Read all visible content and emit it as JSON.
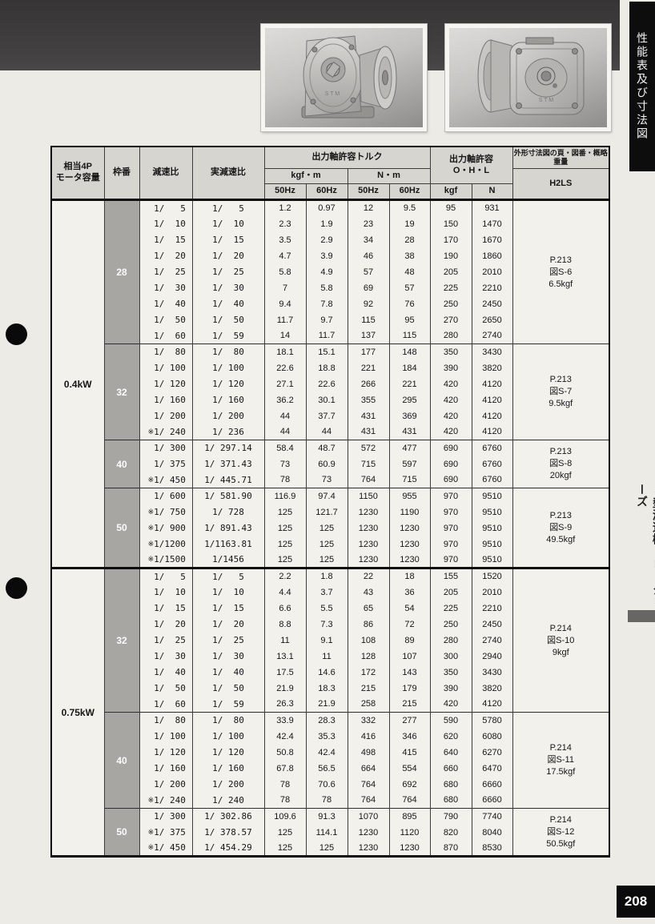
{
  "page": {
    "side_tab_top": "性能表及び寸法図",
    "side_series": "S型減速機・H2シリーズ",
    "page_number": "208"
  },
  "table": {
    "headers": {
      "motor": "相当4P\nモータ容量",
      "frame": "枠番",
      "ratio": "減速比",
      "actual_ratio": "実減速比",
      "torque": "出力軸許容トルク",
      "kgfm": "kgf・m",
      "nm": "N・m",
      "hz50": "50Hz",
      "hz60": "60Hz",
      "ohl": "出力軸許容\nO・H・L",
      "kgf": "kgf",
      "n": "N",
      "outline": "外形寸法図の頁・図番・概略重量",
      "h2ls": "H2LS"
    },
    "sections": [
      {
        "capacity": "0.4kW",
        "groups": [
          {
            "frame": "28",
            "note": [
              "P.213",
              "図S-6",
              "6.5kgf"
            ],
            "rows": [
              [
                "",
                "1/   5",
                "1/   5",
                "1.2",
                "0.97",
                "12",
                "9.5",
                "95",
                "931"
              ],
              [
                "",
                "1/  10",
                "1/  10",
                "2.3",
                "1.9",
                "23",
                "19",
                "150",
                "1470"
              ],
              [
                "",
                "1/  15",
                "1/  15",
                "3.5",
                "2.9",
                "34",
                "28",
                "170",
                "1670"
              ],
              [
                "",
                "1/  20",
                "1/  20",
                "4.7",
                "3.9",
                "46",
                "38",
                "190",
                "1860"
              ],
              [
                "",
                "1/  25",
                "1/  25",
                "5.8",
                "4.9",
                "57",
                "48",
                "205",
                "2010"
              ],
              [
                "",
                "1/  30",
                "1/  30",
                "7",
                "5.8",
                "69",
                "57",
                "225",
                "2210"
              ],
              [
                "",
                "1/  40",
                "1/  40",
                "9.4",
                "7.8",
                "92",
                "76",
                "250",
                "2450"
              ],
              [
                "",
                "1/  50",
                "1/  50",
                "11.7",
                "9.7",
                "115",
                "95",
                "270",
                "2650"
              ],
              [
                "",
                "1/  60",
                "1/  59",
                "14",
                "11.7",
                "137",
                "115",
                "280",
                "2740"
              ]
            ]
          },
          {
            "frame": "32",
            "note": [
              "P.213",
              "図S-7",
              "9.5kgf"
            ],
            "rows": [
              [
                "",
                "1/  80",
                "1/  80",
                "18.1",
                "15.1",
                "177",
                "148",
                "350",
                "3430"
              ],
              [
                "",
                "1/ 100",
                "1/ 100",
                "22.6",
                "18.8",
                "221",
                "184",
                "390",
                "3820"
              ],
              [
                "",
                "1/ 120",
                "1/ 120",
                "27.1",
                "22.6",
                "266",
                "221",
                "420",
                "4120"
              ],
              [
                "",
                "1/ 160",
                "1/ 160",
                "36.2",
                "30.1",
                "355",
                "295",
                "420",
                "4120"
              ],
              [
                "",
                "1/ 200",
                "1/ 200",
                "44",
                "37.7",
                "431",
                "369",
                "420",
                "4120"
              ],
              [
                "※",
                "1/ 240",
                "1/ 236",
                "44",
                "44",
                "431",
                "431",
                "420",
                "4120"
              ]
            ]
          },
          {
            "frame": "40",
            "note": [
              "P.213",
              "図S-8",
              "20kgf"
            ],
            "rows": [
              [
                "",
                "1/ 300",
                "1/ 297.14",
                "58.4",
                "48.7",
                "572",
                "477",
                "690",
                "6760"
              ],
              [
                "",
                "1/ 375",
                "1/ 371.43",
                "73",
                "60.9",
                "715",
                "597",
                "690",
                "6760"
              ],
              [
                "※",
                "1/ 450",
                "1/ 445.71",
                "78",
                "73",
                "764",
                "715",
                "690",
                "6760"
              ]
            ]
          },
          {
            "frame": "50",
            "note": [
              "P.213",
              "図S-9",
              "49.5kgf"
            ],
            "rows": [
              [
                "",
                "1/ 600",
                "1/ 581.90",
                "116.9",
                "97.4",
                "1150",
                "955",
                "970",
                "9510"
              ],
              [
                "※",
                "1/ 750",
                "1/ 728",
                "125",
                "121.7",
                "1230",
                "1190",
                "970",
                "9510"
              ],
              [
                "※",
                "1/ 900",
                "1/ 891.43",
                "125",
                "125",
                "1230",
                "1230",
                "970",
                "9510"
              ],
              [
                "※",
                "1/1200",
                "1/1163.81",
                "125",
                "125",
                "1230",
                "1230",
                "970",
                "9510"
              ],
              [
                "※",
                "1/1500",
                "1/1456",
                "125",
                "125",
                "1230",
                "1230",
                "970",
                "9510"
              ]
            ]
          }
        ]
      },
      {
        "capacity": "0.75kW",
        "groups": [
          {
            "frame": "32",
            "note": [
              "P.214",
              "図S-10",
              "9kgf"
            ],
            "rows": [
              [
                "",
                "1/   5",
                "1/   5",
                "2.2",
                "1.8",
                "22",
                "18",
                "155",
                "1520"
              ],
              [
                "",
                "1/  10",
                "1/  10",
                "4.4",
                "3.7",
                "43",
                "36",
                "205",
                "2010"
              ],
              [
                "",
                "1/  15",
                "1/  15",
                "6.6",
                "5.5",
                "65",
                "54",
                "225",
                "2210"
              ],
              [
                "",
                "1/  20",
                "1/  20",
                "8.8",
                "7.3",
                "86",
                "72",
                "250",
                "2450"
              ],
              [
                "",
                "1/  25",
                "1/  25",
                "11",
                "9.1",
                "108",
                "89",
                "280",
                "2740"
              ],
              [
                "",
                "1/  30",
                "1/  30",
                "13.1",
                "11",
                "128",
                "107",
                "300",
                "2940"
              ],
              [
                "",
                "1/  40",
                "1/  40",
                "17.5",
                "14.6",
                "172",
                "143",
                "350",
                "3430"
              ],
              [
                "",
                "1/  50",
                "1/  50",
                "21.9",
                "18.3",
                "215",
                "179",
                "390",
                "3820"
              ],
              [
                "",
                "1/  60",
                "1/  59",
                "26.3",
                "21.9",
                "258",
                "215",
                "420",
                "4120"
              ]
            ]
          },
          {
            "frame": "40",
            "note": [
              "P.214",
              "図S-11",
              "17.5kgf"
            ],
            "rows": [
              [
                "",
                "1/  80",
                "1/  80",
                "33.9",
                "28.3",
                "332",
                "277",
                "590",
                "5780"
              ],
              [
                "",
                "1/ 100",
                "1/ 100",
                "42.4",
                "35.3",
                "416",
                "346",
                "620",
                "6080"
              ],
              [
                "",
                "1/ 120",
                "1/ 120",
                "50.8",
                "42.4",
                "498",
                "415",
                "640",
                "6270"
              ],
              [
                "",
                "1/ 160",
                "1/ 160",
                "67.8",
                "56.5",
                "664",
                "554",
                "660",
                "6470"
              ],
              [
                "",
                "1/ 200",
                "1/ 200",
                "78",
                "70.6",
                "764",
                "692",
                "680",
                "6660"
              ],
              [
                "※",
                "1/ 240",
                "1/ 240",
                "78",
                "78",
                "764",
                "764",
                "680",
                "6660"
              ]
            ]
          },
          {
            "frame": "50",
            "note": [
              "P.214",
              "図S-12",
              "50.5kgf"
            ],
            "rows": [
              [
                "",
                "1/ 300",
                "1/ 302.86",
                "109.6",
                "91.3",
                "1070",
                "895",
                "790",
                "7740"
              ],
              [
                "※",
                "1/ 375",
                "1/ 378.57",
                "125",
                "114.1",
                "1230",
                "1120",
                "820",
                "8040"
              ],
              [
                "※",
                "1/ 450",
                "1/ 454.29",
                "125",
                "125",
                "1230",
                "1230",
                "870",
                "8530"
              ]
            ]
          }
        ]
      }
    ]
  },
  "colors": {
    "band": "#3f3d3e",
    "paper": "#edebe6",
    "header_bg": "#d7d5d0",
    "frame_col_bg": "#a8a6a2",
    "tab_bg": "#0e0d0d"
  }
}
